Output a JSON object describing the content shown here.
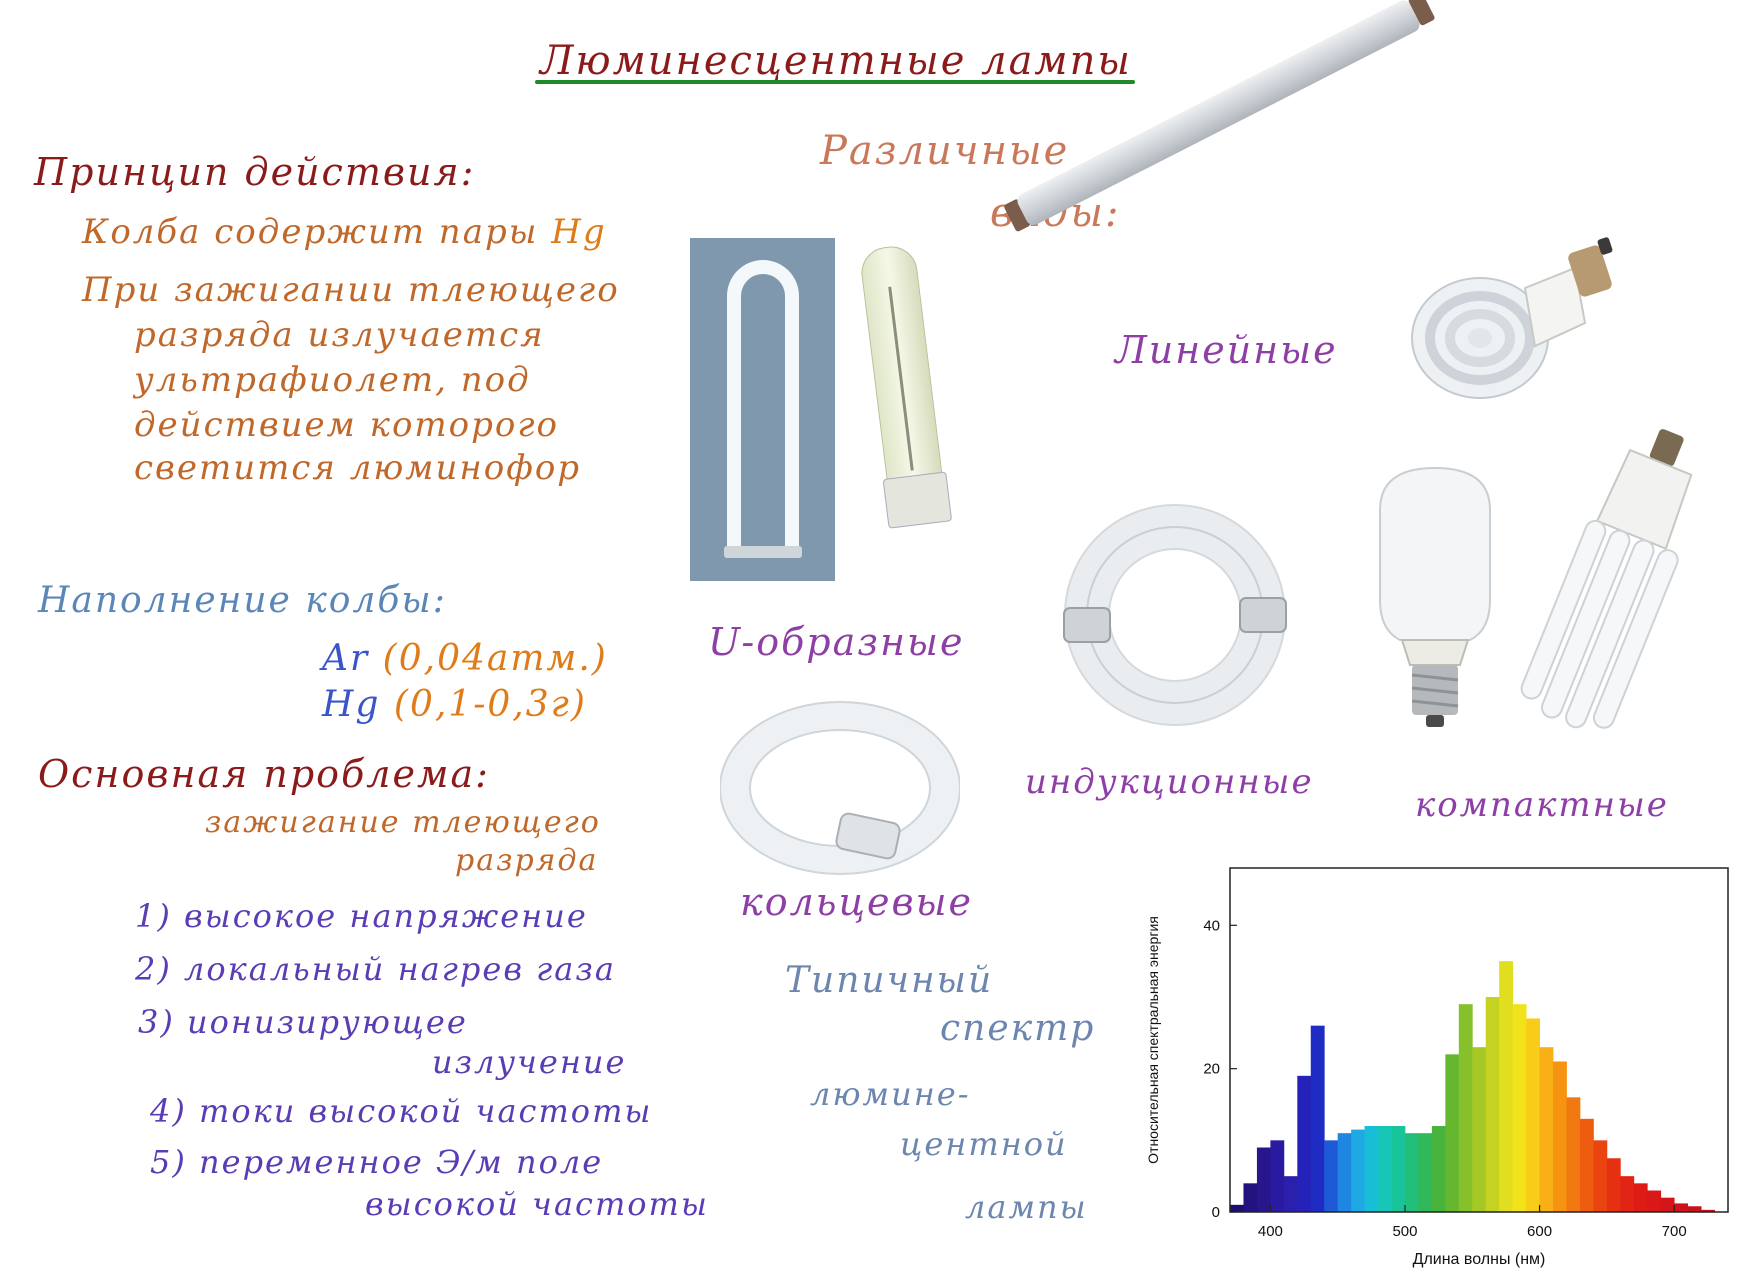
{
  "title": "Люминесцентные лампы",
  "principle": {
    "heading": "Принцип действия:",
    "line1_text": "Колба содержит пары",
    "line1_hg": "Hg",
    "line2": "При зажигании тлеющего",
    "line3": "разряда излучается",
    "line4": "ультрафиолет, под",
    "line5": "действием которого",
    "line6": "светится люминофор"
  },
  "filling": {
    "heading": "Наполнение колбы:",
    "ar_symbol": "Ar",
    "ar_value": "(0,04атм.)",
    "hg_symbol": "Hg",
    "hg_value": "(0,1-0,3г)"
  },
  "problem": {
    "heading": "Основная проблема:",
    "line1": "зажигание тлеющего",
    "line2": "разряда",
    "items": [
      "1) высокое напряжение",
      "2) локальный нагрев газа",
      "3) ионизирующее",
      "излучение",
      "4) токи высокой частоты",
      "5) переменное Э/м поле",
      "высокой частоты"
    ]
  },
  "types": {
    "heading_line1": "Различные",
    "heading_line2": "виды:",
    "linear": "Линейные",
    "u_shaped": "U-образные",
    "ring": "кольцевые",
    "induction": "индукционные",
    "compact": "компактные"
  },
  "spectrum_note": {
    "line1": "Типичный",
    "line2": "спектр",
    "line3": "люмине-",
    "line4": "центной",
    "line5": "лампы"
  },
  "chart_data": {
    "type": "bar",
    "xlabel": "Длина волны (нм)",
    "ylabel": "Относительная спектральная энергия",
    "xlim": [
      370,
      740
    ],
    "ylim": [
      0,
      48
    ],
    "xticks": [
      400,
      500,
      600,
      700
    ],
    "yticks": [
      0,
      20,
      40
    ],
    "bin_width": 10,
    "x": [
      375,
      385,
      395,
      405,
      415,
      425,
      435,
      445,
      455,
      465,
      475,
      485,
      495,
      505,
      515,
      525,
      535,
      545,
      555,
      565,
      575,
      585,
      595,
      605,
      615,
      625,
      635,
      645,
      655,
      665,
      675,
      685,
      695,
      705,
      715,
      725
    ],
    "values": [
      1,
      4,
      9,
      10,
      5,
      19,
      26,
      10,
      11,
      11.5,
      12,
      12,
      12,
      11,
      11,
      12,
      22,
      29,
      23,
      30,
      35,
      29,
      27,
      23,
      21,
      16,
      13,
      10,
      7.5,
      5,
      4,
      3,
      2,
      1.2,
      0.8,
      0.3
    ],
    "bar_colors": [
      "#1a0e6e",
      "#22137e",
      "#27168c",
      "#2a1aa0",
      "#2b20ae",
      "#2422b8",
      "#1e2cc4",
      "#1e5ad6",
      "#1f86e2",
      "#1ea8e4",
      "#18bdd6",
      "#16c6b6",
      "#18c49a",
      "#22bf7a",
      "#30b85a",
      "#48b43e",
      "#66b630",
      "#86c02a",
      "#a6c826",
      "#c6d222",
      "#e0de1e",
      "#f2e21a",
      "#f8cc18",
      "#f8b016",
      "#f69412",
      "#f27810",
      "#ee5c10",
      "#ea4410",
      "#e63012",
      "#e22414",
      "#de1c16",
      "#da1818",
      "#d4161a",
      "#ce141a",
      "#c8121a",
      "#c2101a"
    ],
    "grid": false
  }
}
